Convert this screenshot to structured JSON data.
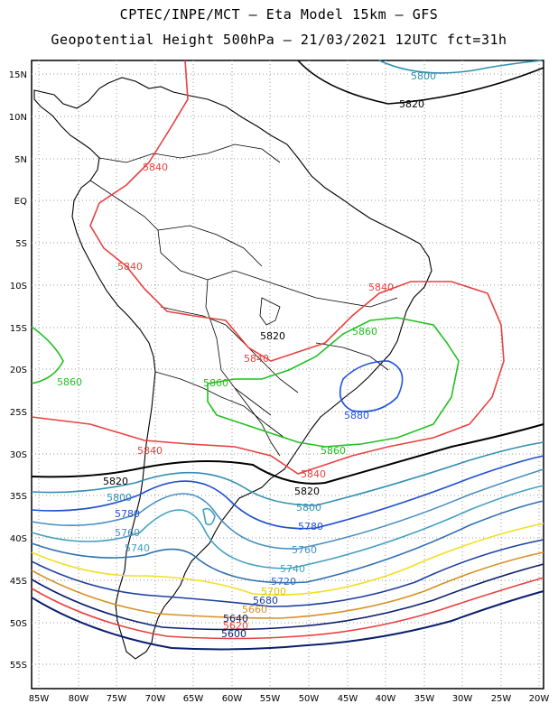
{
  "header": {
    "line1": "CPTEC/INPE/MCT –  Eta Model 15km – GFS",
    "line2": "Geopotential Height 500hPa – 21/03/2021 12UTC fct=31h"
  },
  "map": {
    "lat_labels": [
      "15N",
      "10N",
      "5N",
      "EQ",
      "5S",
      "10S",
      "15S",
      "20S",
      "25S",
      "30S",
      "35S",
      "40S",
      "45S",
      "50S",
      "55S"
    ],
    "lon_labels": [
      "85W",
      "80W",
      "75W",
      "70W",
      "65W",
      "60W",
      "55W",
      "50W",
      "45W",
      "40W",
      "35W",
      "30W",
      "25W",
      "20W"
    ],
    "contour_colors": {
      "5660": "#0a1f6e",
      "5680": "#1f3fa0",
      "5700": "#f0e020",
      "5720": "#3070b0",
      "5740": "#40a0c0",
      "5760": "#4a8fc0",
      "5780": "#2050d0",
      "5800": "#3090b0",
      "5820": "#000000",
      "5840": "#e84040",
      "5860": "#20c020",
      "5880": "#2050e0",
      "5620": "#e84040",
      "5680b": "#d89020"
    },
    "contour_labels": [
      {
        "text": "5800",
        "color": "#3090b0"
      },
      {
        "text": "5820",
        "color": "#000000"
      },
      {
        "text": "5840",
        "color": "#e84040"
      },
      {
        "text": "5840",
        "color": "#e84040"
      },
      {
        "text": "5840",
        "color": "#e84040"
      },
      {
        "text": "5820",
        "color": "#000000"
      },
      {
        "text": "5840",
        "color": "#e84040"
      },
      {
        "text": "5860",
        "color": "#20c020"
      },
      {
        "text": "5860",
        "color": "#20c020"
      },
      {
        "text": "5860",
        "color": "#20c020"
      },
      {
        "text": "5880",
        "color": "#2050e0"
      },
      {
        "text": "5840",
        "color": "#e84040"
      },
      {
        "text": "5860",
        "color": "#20c020"
      },
      {
        "text": "5820",
        "color": "#000000"
      },
      {
        "text": "5840",
        "color": "#e84040"
      },
      {
        "text": "5820",
        "color": "#000000"
      },
      {
        "text": "5800",
        "color": "#3090b0"
      },
      {
        "text": "5800",
        "color": "#3090b0"
      },
      {
        "text": "5780",
        "color": "#2050d0"
      },
      {
        "text": "5780",
        "color": "#2050d0"
      },
      {
        "text": "5760",
        "color": "#4a8fc0"
      },
      {
        "text": "5760",
        "color": "#4a8fc0"
      },
      {
        "text": "5740",
        "color": "#40a0c0"
      },
      {
        "text": "5740",
        "color": "#40a0c0"
      },
      {
        "text": "5720",
        "color": "#3070b0"
      },
      {
        "text": "5700",
        "color": "#e0c000"
      },
      {
        "text": "5680",
        "color": "#1f3fa0"
      },
      {
        "text": "5660",
        "color": "#d89020"
      },
      {
        "text": "5640",
        "color": "#0a1f6e"
      },
      {
        "text": "5620",
        "color": "#e84040"
      },
      {
        "text": "5600",
        "color": "#0a1f6e"
      }
    ]
  }
}
